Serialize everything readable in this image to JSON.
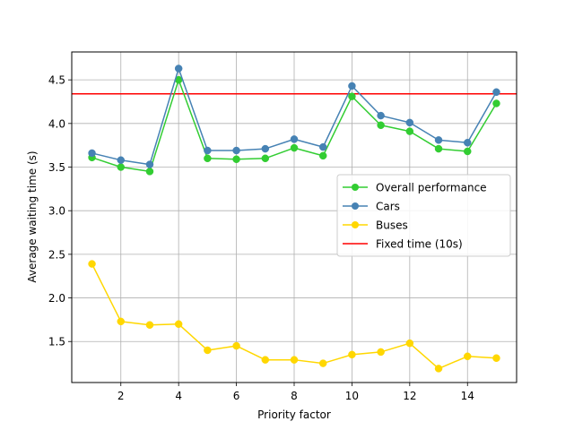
{
  "chart_data": {
    "type": "line",
    "xlabel": "Priority factor",
    "ylabel": "Average waiting time (s)",
    "xlim": [
      0.3,
      15.7
    ],
    "ylim": [
      1.03,
      4.82
    ],
    "xticks": [
      2,
      4,
      6,
      8,
      10,
      12,
      14
    ],
    "yticks": [
      1.5,
      2.0,
      2.5,
      3.0,
      3.5,
      4.0,
      4.5
    ],
    "grid": true,
    "legend_position": "center-right",
    "x": [
      1,
      2,
      3,
      4,
      5,
      6,
      7,
      8,
      9,
      10,
      11,
      12,
      13,
      14,
      15
    ],
    "series": [
      {
        "name": "Overall performance",
        "color": "#32cd32",
        "values": [
          3.61,
          3.5,
          3.45,
          4.5,
          3.6,
          3.59,
          3.6,
          3.72,
          3.63,
          4.31,
          3.98,
          3.91,
          3.71,
          3.68,
          4.23
        ]
      },
      {
        "name": "Cars",
        "color": "#4682b4",
        "values": [
          3.66,
          3.58,
          3.53,
          4.63,
          3.69,
          3.69,
          3.71,
          3.82,
          3.73,
          4.43,
          4.09,
          4.01,
          3.81,
          3.78,
          4.36
        ]
      },
      {
        "name": "Buses",
        "color": "#ffd700",
        "values": [
          2.39,
          1.73,
          1.69,
          1.7,
          1.4,
          1.45,
          1.29,
          1.29,
          1.25,
          1.35,
          1.38,
          1.48,
          1.19,
          1.33,
          1.31
        ]
      }
    ],
    "reference_line": {
      "name": "Fixed time (10s)",
      "color": "#ff0000",
      "value": 4.34
    }
  }
}
